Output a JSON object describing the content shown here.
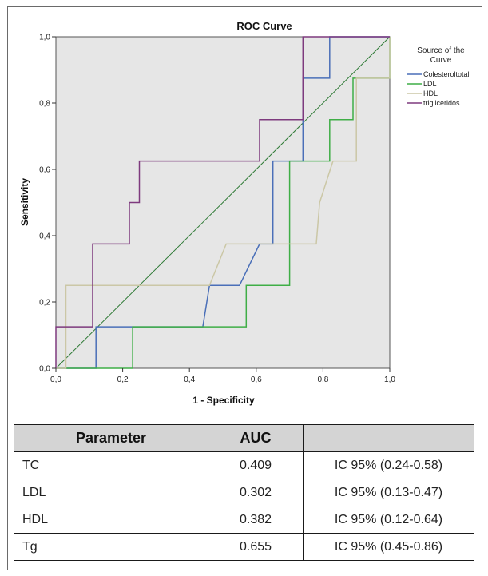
{
  "chart_data": {
    "type": "line",
    "title": "ROC Curve",
    "xlabel": "1 - Specificity",
    "ylabel": "Sensitivity",
    "xlim": [
      0,
      1
    ],
    "ylim": [
      0,
      1
    ],
    "xticks": [
      "0,0",
      "0,2",
      "0,4",
      "0,6",
      "0,8",
      "1,0"
    ],
    "yticks": [
      "0,0",
      "0,2",
      "0,4",
      "0,6",
      "0,8",
      "1,0"
    ],
    "legend_title_line1": "Source of the",
    "legend_title_line2": "Curve",
    "legend_position": "right",
    "background": "#e6e6e6",
    "series": [
      {
        "name": "Colesteroltotal",
        "color": "#4a6fb8",
        "x": [
          0,
          0.12,
          0.12,
          0.44,
          0.46,
          0.55,
          0.61,
          0.65,
          0.65,
          0.7,
          0.74,
          0.74,
          0.82,
          0.82,
          1.0
        ],
        "y": [
          0,
          0,
          0.125,
          0.125,
          0.25,
          0.25,
          0.375,
          0.375,
          0.625,
          0.625,
          0.625,
          0.875,
          0.875,
          1.0,
          1.0
        ]
      },
      {
        "name": "LDL",
        "color": "#3fae46",
        "x": [
          0,
          0.23,
          0.23,
          0.57,
          0.57,
          0.7,
          0.7,
          0.79,
          0.82,
          0.82,
          0.89,
          0.89,
          1.0,
          1.0
        ],
        "y": [
          0,
          0,
          0.125,
          0.125,
          0.25,
          0.25,
          0.625,
          0.625,
          0.625,
          0.75,
          0.75,
          0.875,
          0.875,
          1.0
        ]
      },
      {
        "name": "HDL",
        "color": "#cbc7a6",
        "x": [
          0,
          0.03,
          0.03,
          0.46,
          0.51,
          0.59,
          0.78,
          0.79,
          0.83,
          0.9,
          0.9,
          1.0,
          1.0
        ],
        "y": [
          0,
          0,
          0.25,
          0.25,
          0.375,
          0.375,
          0.375,
          0.5,
          0.625,
          0.625,
          0.875,
          0.875,
          1.0
        ]
      },
      {
        "name": "trigliceridos",
        "color": "#7e3a7e",
        "x": [
          0,
          0,
          0.11,
          0.11,
          0.22,
          0.22,
          0.25,
          0.25,
          0.61,
          0.61,
          0.74,
          0.74,
          1.0,
          1.0
        ],
        "y": [
          0,
          0.125,
          0.125,
          0.375,
          0.375,
          0.5,
          0.5,
          0.625,
          0.625,
          0.75,
          0.75,
          1.0,
          1.0,
          1.0
        ]
      }
    ],
    "diagonal_color": "#2f7a36"
  },
  "table": {
    "headers": [
      "Parameter",
      "AUC",
      ""
    ],
    "rows": [
      [
        "TC",
        "0.409",
        "IC 95% (0.24-0.58)"
      ],
      [
        "LDL",
        "0.302",
        "IC 95% (0.13-0.47)"
      ],
      [
        "HDL",
        "0.382",
        "IC 95% (0.12-0.64)"
      ],
      [
        "Tg",
        "0.655",
        "IC 95% (0.45-0.86)"
      ]
    ]
  }
}
